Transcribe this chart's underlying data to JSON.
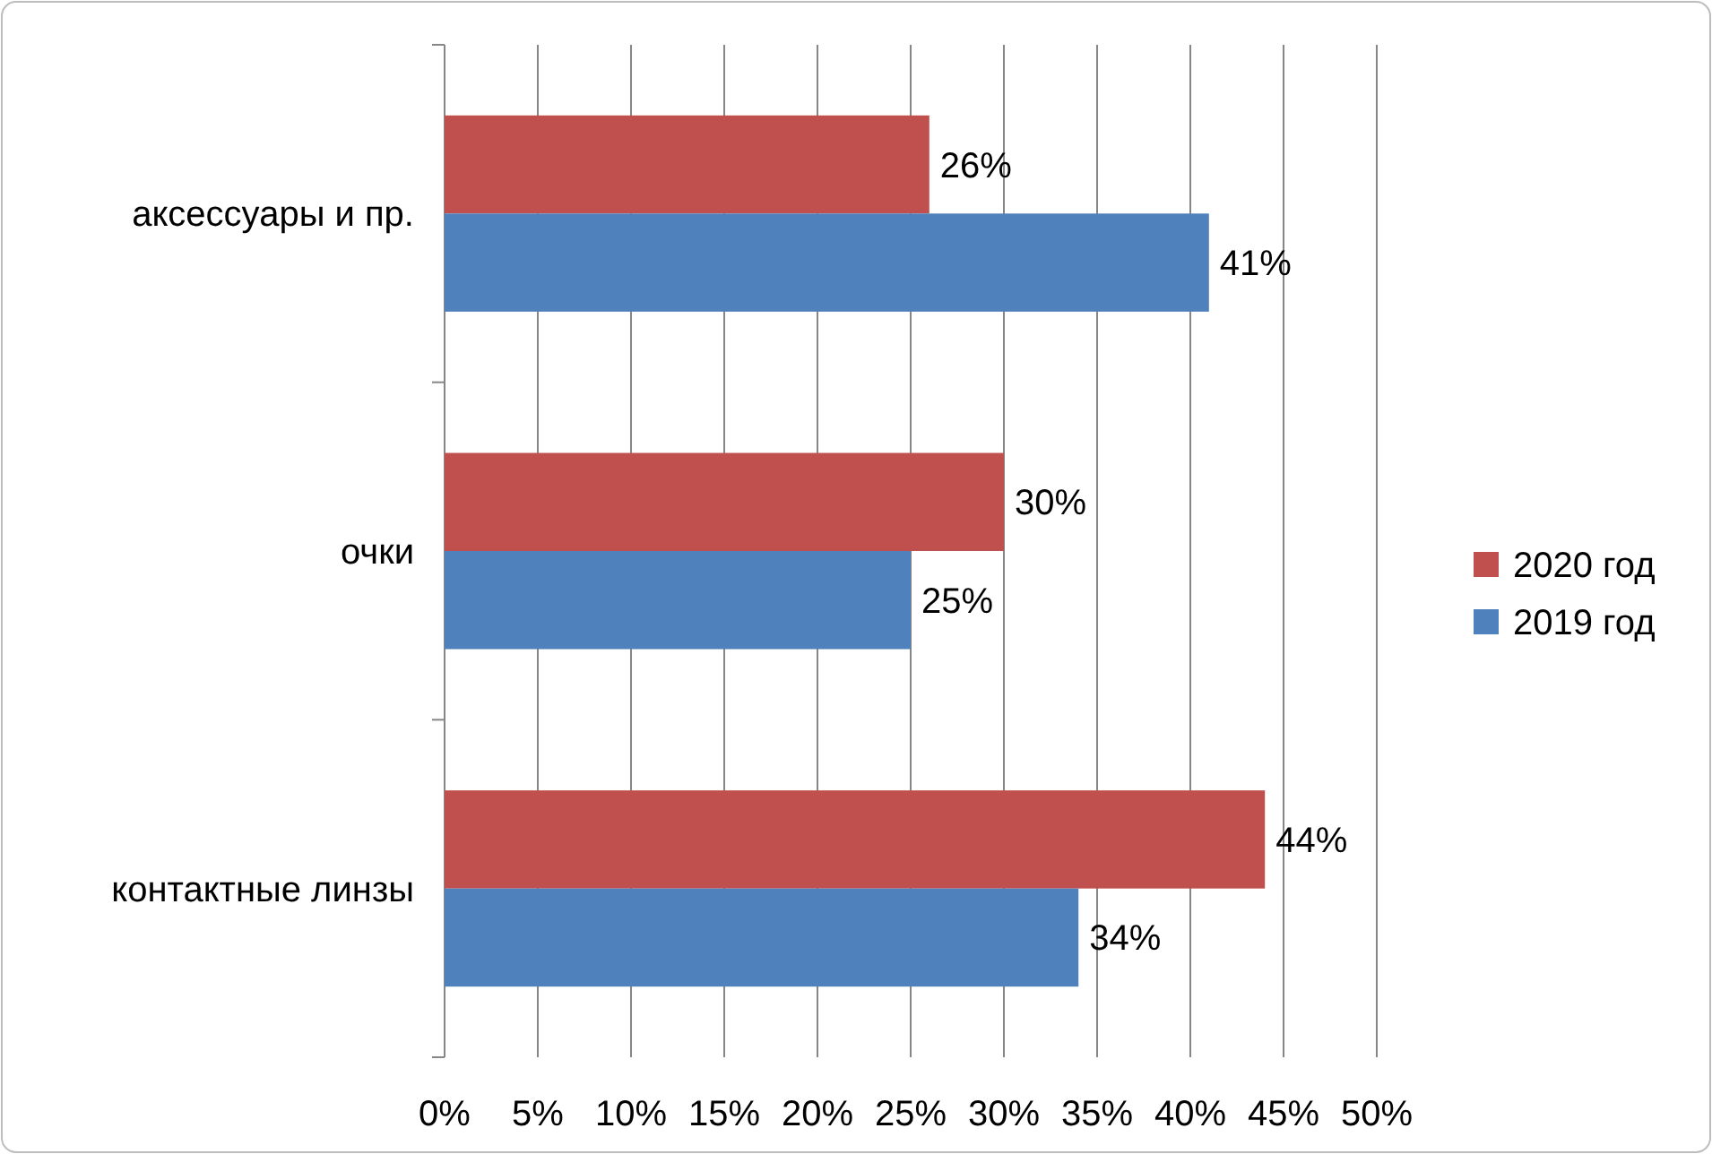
{
  "chart_data": {
    "type": "bar",
    "orientation": "horizontal",
    "categories": [
      "аксессуары и пр.",
      "очки",
      "контактные линзы"
    ],
    "series": [
      {
        "name": "2020 год",
        "color": "#c0504d",
        "values": [
          26,
          30,
          44
        ],
        "value_labels": [
          "26%",
          "30%",
          "44%"
        ]
      },
      {
        "name": "2019 год",
        "color": "#4f81bd",
        "values": [
          41,
          25,
          34
        ],
        "value_labels": [
          "41%",
          "25%",
          "34%"
        ]
      }
    ],
    "xlim": [
      0,
      50
    ],
    "xticks": [
      {
        "value": 0,
        "label": "0%"
      },
      {
        "value": 5,
        "label": "5%"
      },
      {
        "value": 10,
        "label": "10%"
      },
      {
        "value": 15,
        "label": "15%"
      },
      {
        "value": 20,
        "label": "20%"
      },
      {
        "value": 25,
        "label": "25%"
      },
      {
        "value": 30,
        "label": "30%"
      },
      {
        "value": 35,
        "label": "35%"
      },
      {
        "value": 40,
        "label": "40%"
      },
      {
        "value": 45,
        "label": "45%"
      },
      {
        "value": 50,
        "label": "50%"
      }
    ],
    "grid": "x",
    "legend": "right"
  }
}
